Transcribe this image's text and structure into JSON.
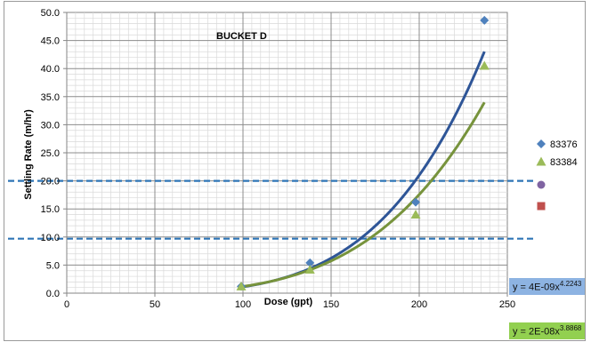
{
  "chart_data": {
    "type": "scatter",
    "title": "BUCKET D",
    "xlabel": "Dose (gpt)",
    "ylabel": "Settling Rate (m/hr)",
    "xlim": [
      0,
      250
    ],
    "ylim": [
      0,
      50
    ],
    "x_ticks": [
      "0",
      "50",
      "100",
      "150",
      "200",
      "250"
    ],
    "y_ticks": [
      "0.0",
      "5.0",
      "10.0",
      "15.0",
      "20.0",
      "25.0",
      "30.0",
      "35.0",
      "40.0",
      "45.0",
      "50.0"
    ],
    "grid": true,
    "legend_position": "right",
    "series": [
      {
        "name": "83376",
        "marker": "diamond",
        "color": "#4f81bd",
        "x": [
          99,
          138,
          198,
          237
        ],
        "y": [
          1.2,
          5.4,
          16.2,
          48.6
        ]
      },
      {
        "name": "83384",
        "marker": "triangle",
        "color": "#9bbb59",
        "x": [
          99,
          138,
          198,
          237
        ],
        "y": [
          1.2,
          4.2,
          14.0,
          40.5
        ]
      }
    ],
    "extra_legend_markers": [
      {
        "marker": "circle",
        "color": "#8064a2"
      },
      {
        "marker": "square",
        "color": "#c0504d"
      }
    ],
    "trendlines": [
      {
        "type": "power",
        "coef": 4e-09,
        "exp": 4.2243,
        "color": "#2e5597",
        "label": "y = 4E-09x",
        "exponent_label": "4.2243",
        "label_bg": "#8db3e2",
        "x_range": [
          99,
          237
        ]
      },
      {
        "type": "power",
        "coef": 2e-08,
        "exp": 3.8868,
        "color": "#77933c",
        "label": "y = 2E-08x",
        "exponent_label": "3.8868",
        "label_bg": "#92d050",
        "x_range": [
          99,
          237
        ]
      }
    ],
    "reference_lines": [
      {
        "y": 20,
        "color": "#2e75b6",
        "style": "dashed"
      },
      {
        "y": 9.7,
        "color": "#2e75b6",
        "style": "dashed"
      }
    ]
  }
}
